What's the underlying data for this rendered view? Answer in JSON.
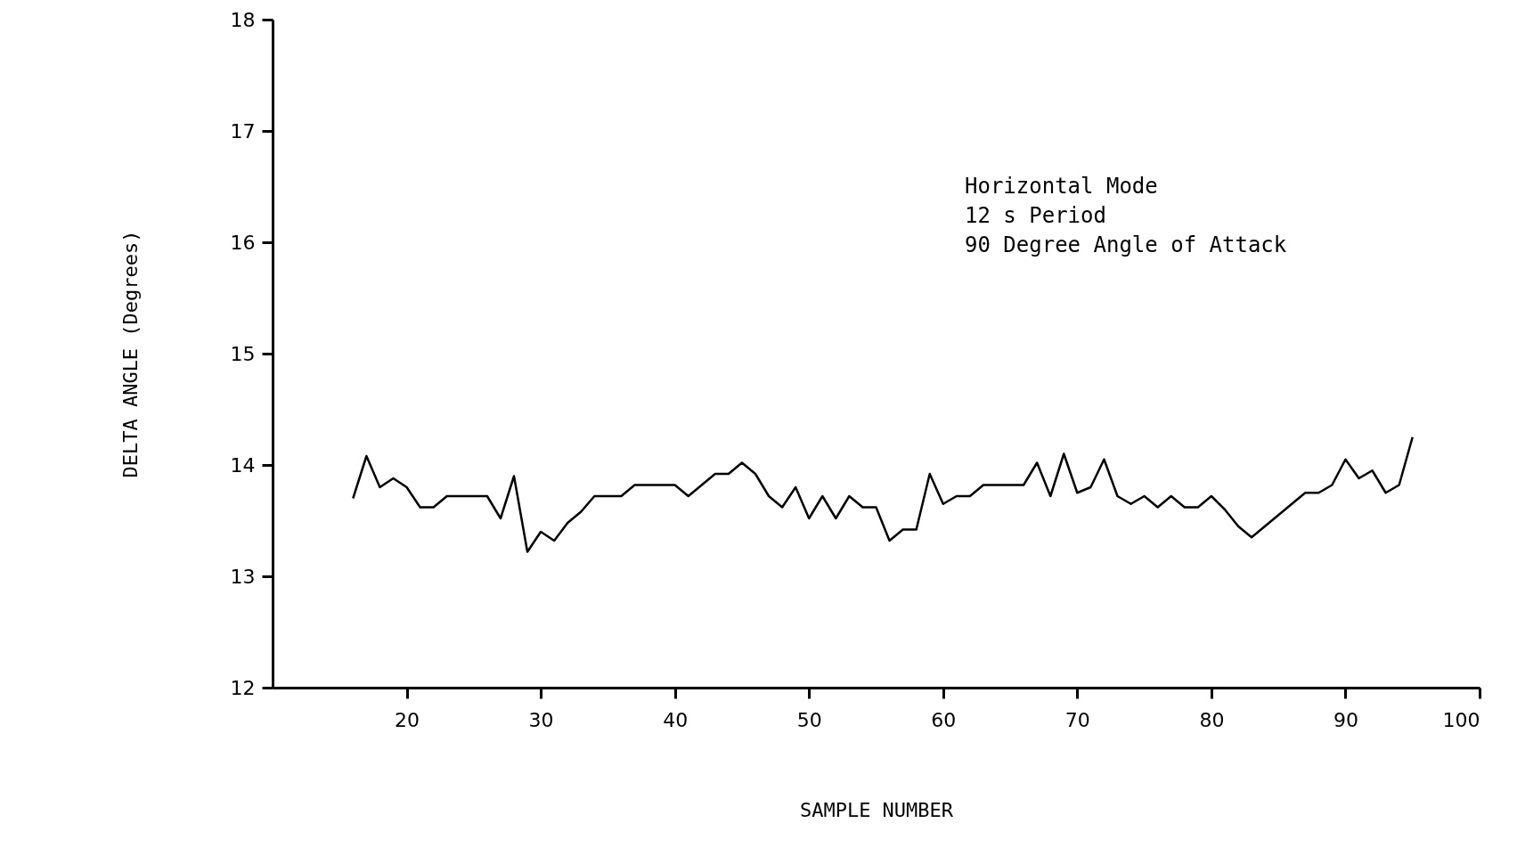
{
  "chart_data": {
    "type": "line",
    "xlabel": "SAMPLE NUMBER",
    "ylabel": "DELTA ANGLE (Degrees)",
    "annotations": [
      "Horizontal Mode",
      "12 s Period",
      "90 Degree Angle of Attack"
    ],
    "x": [
      16,
      17,
      18,
      19,
      20,
      21,
      22,
      23,
      24,
      25,
      26,
      27,
      28,
      29,
      30,
      31,
      32,
      33,
      34,
      35,
      36,
      37,
      38,
      39,
      40,
      41,
      42,
      43,
      44,
      45,
      46,
      47,
      48,
      49,
      50,
      51,
      52,
      53,
      54,
      55,
      56,
      57,
      58,
      59,
      60,
      61,
      62,
      63,
      64,
      65,
      66,
      67,
      68,
      69,
      70,
      71,
      72,
      73,
      74,
      75,
      76,
      77,
      78,
      79,
      80,
      81,
      82,
      83,
      84,
      85,
      86,
      87,
      88,
      89,
      90,
      91,
      92,
      93,
      94,
      95
    ],
    "series": [
      {
        "color": "#000000",
        "values": [
          13.7,
          14.08,
          13.8,
          13.88,
          13.8,
          13.62,
          13.62,
          13.72,
          13.72,
          13.72,
          13.72,
          13.52,
          13.9,
          13.22,
          13.4,
          13.32,
          13.48,
          13.58,
          13.72,
          13.72,
          13.72,
          13.82,
          13.82,
          13.82,
          13.82,
          13.72,
          13.82,
          13.92,
          13.92,
          14.02,
          13.92,
          13.72,
          13.62,
          13.8,
          13.52,
          13.72,
          13.52,
          13.72,
          13.62,
          13.62,
          13.32,
          13.42,
          13.42,
          13.92,
          13.65,
          13.72,
          13.72,
          13.82,
          13.82,
          13.82,
          13.82,
          14.02,
          13.72,
          14.1,
          13.75,
          13.8,
          14.05,
          13.72,
          13.65,
          13.72,
          13.62,
          13.72,
          13.62,
          13.62,
          13.72,
          13.6,
          13.45,
          13.35,
          13.45,
          13.55,
          13.65,
          13.75,
          13.75,
          13.82,
          14.05,
          13.88,
          13.95,
          13.75,
          13.82,
          14.25
        ]
      }
    ],
    "xlim": [
      10,
      100
    ],
    "xticks": [
      20,
      30,
      40,
      50,
      60,
      70,
      80,
      90,
      100
    ],
    "ylim": [
      12,
      18
    ],
    "yticks": [
      12,
      13,
      14,
      15,
      16,
      17,
      18
    ],
    "grid": false,
    "marker": "none",
    "line_style": "solid"
  }
}
